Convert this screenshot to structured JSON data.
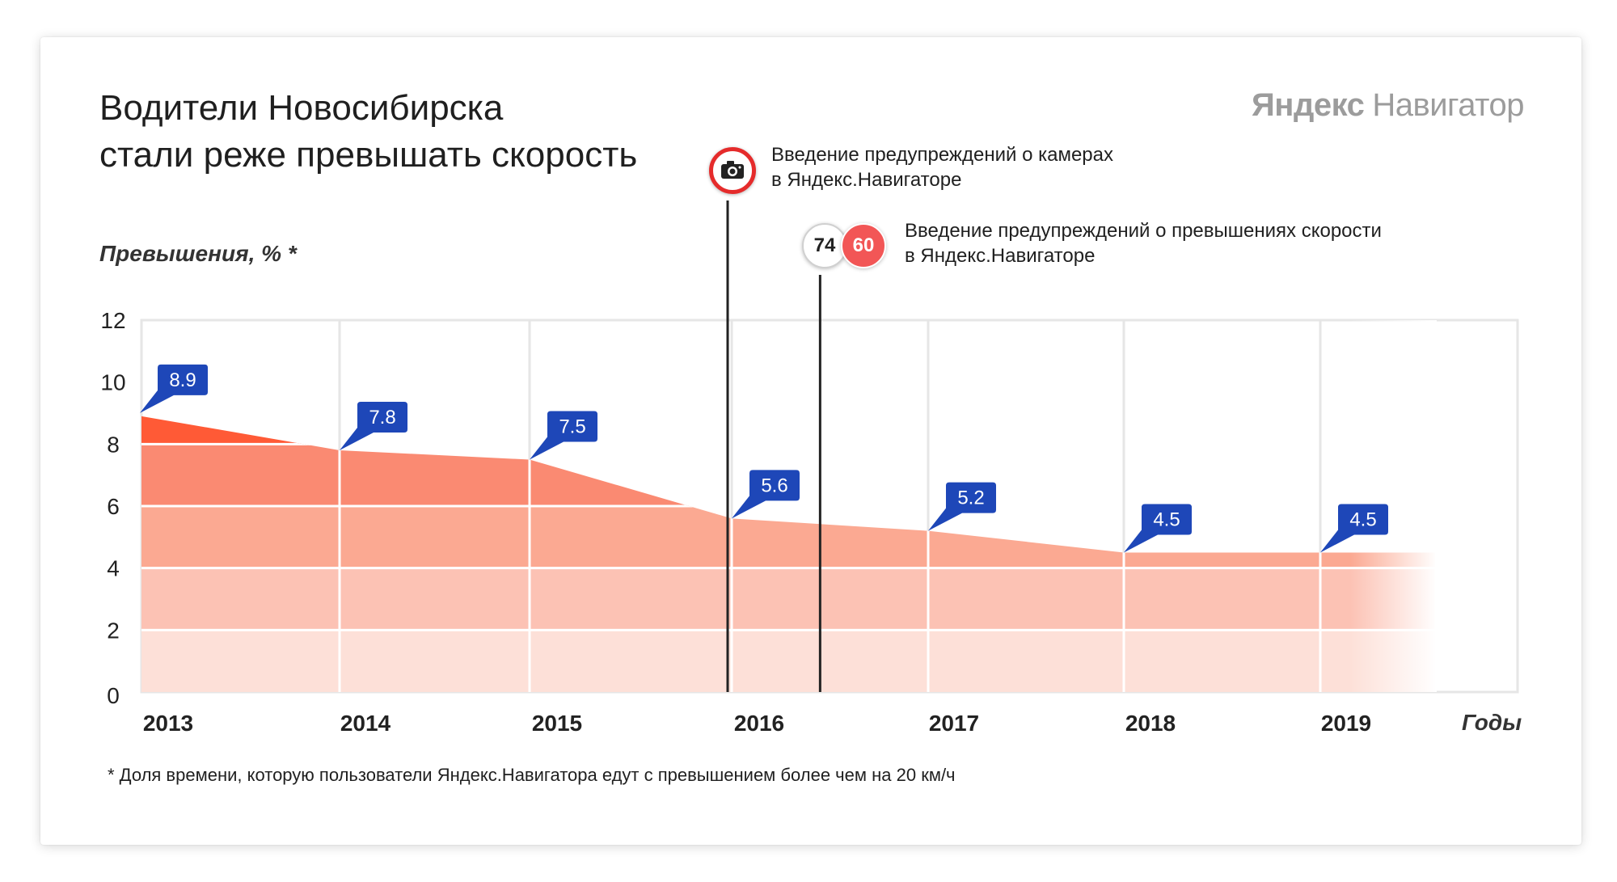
{
  "header": {
    "title_line1": "Водители Новосибирска",
    "title_line2": "стали реже превышать скорость",
    "brand_part1": "Яндекс",
    "brand_part2": "Навигатор"
  },
  "annotations": {
    "cameras_line1": "Введение предупреждений о камерах",
    "cameras_line2": "в Яндекс.Навигаторе",
    "speeding_line1": "Введение предупреждений о превышениях скорости",
    "speeding_line2": "в Яндекс.Навигаторе",
    "sign_limit_a": "74",
    "sign_limit_b": "60",
    "camera_icon": "camera-icon"
  },
  "footnote": "* Доля времени, которую пользователи Яндекс.Навигатора едут с превышением более чем на 20 км/ч",
  "colors": {
    "area_top": "#ff5a36",
    "area_mid": "#fa8a72",
    "area_low": "#fdd9d0",
    "callout": "#1e47b8",
    "grid": "#e6e6e6",
    "marker_line": "#222222",
    "camera_ring": "#e52b2b",
    "sign_red": "#f25656"
  },
  "chart_data": {
    "type": "area",
    "ylabel": "Превышения, % *",
    "xlabel": "Годы",
    "ylim": [
      0,
      12
    ],
    "y_ticks": [
      "0",
      "2",
      "4",
      "6",
      "8",
      "10",
      "12"
    ],
    "categories": [
      "2013",
      "2014",
      "2015",
      "2016",
      "2017",
      "2018",
      "2019"
    ],
    "values": [
      8.9,
      7.8,
      7.5,
      5.6,
      5.2,
      4.5,
      4.5
    ],
    "value_labels": [
      "8.9",
      "7.8",
      "7.5",
      "5.6",
      "5.2",
      "4.5",
      "4.5"
    ],
    "events": [
      {
        "x": 2015.98,
        "label": "Введение предупреждений о камерах в Яндекс.Навигаторе"
      },
      {
        "x": 2016.45,
        "label": "Введение предупреждений о превышениях скорости в Яндекс.Навигаторе"
      }
    ],
    "grid": true
  }
}
